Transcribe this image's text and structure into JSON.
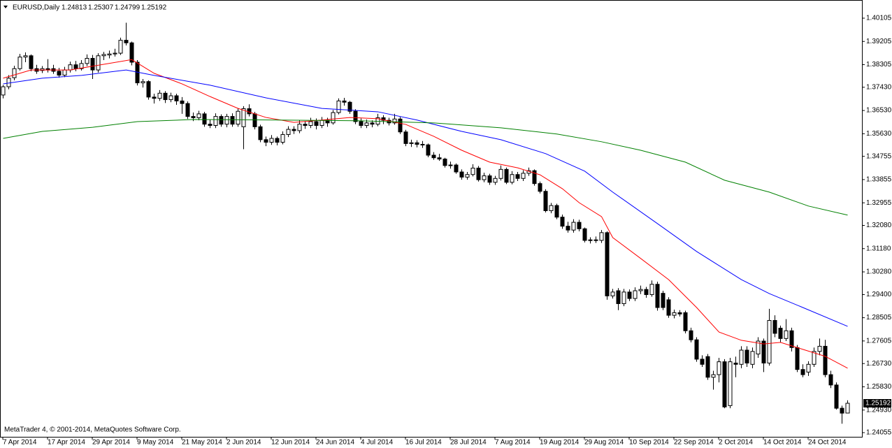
{
  "chart_data": {
    "type": "candlestick",
    "title": "EURUSD,Daily",
    "footer": "MetaTrader 4, © 2001-2014, MetaQuotes Software Corp.",
    "up_color": "#ffffff",
    "down_color": "#000000",
    "outline_color": "#000000",
    "ylim": [
      1.23893,
      1.40809
    ],
    "yticks": [
      1.40105,
      1.39205,
      1.38305,
      {
        "value": 1.3743,
        "label": "1.37430"
      },
      {
        "value": 1.3653,
        "label": "1.36530"
      },
      {
        "value": 1.3563,
        "label": "1.35630"
      },
      1.34755,
      1.33855,
      1.32955,
      {
        "value": 1.3208,
        "label": "1.32080"
      },
      {
        "value": 1.3118,
        "label": "1.31180"
      },
      {
        "value": 1.3028,
        "label": "1.30280"
      },
      {
        "value": 1.294,
        "label": "1.29400"
      },
      1.28505,
      1.27605,
      {
        "value": 1.2673,
        "label": "1.26730"
      },
      {
        "value": 1.2583,
        "label": "1.25830"
      },
      {
        "value": 1.2493,
        "label": "1.24930"
      },
      1.24055
    ],
    "xticks": [
      {
        "value": 0,
        "label": "7 Apr 2014"
      },
      {
        "value": 8,
        "label": "17 Apr 2014"
      },
      {
        "value": 16,
        "label": "29 Apr 2014"
      },
      {
        "value": 24,
        "label": "9 May 2014"
      },
      {
        "value": 32,
        "label": "21 May 2014"
      },
      {
        "value": 40,
        "label": "2 Jun 2014"
      },
      {
        "value": 48,
        "label": "12 Jun 2014"
      },
      {
        "value": 56,
        "label": "24 Jun 2014"
      },
      {
        "value": 64,
        "label": "4 Jul 2014"
      },
      {
        "value": 72,
        "label": "16 Jul 2014"
      },
      {
        "value": 80,
        "label": "28 Jul 2014"
      },
      {
        "value": 88,
        "label": "7 Aug 2014"
      },
      {
        "value": 96,
        "label": "19 Aug 2014"
      },
      {
        "value": 104,
        "label": "29 Aug 2014"
      },
      {
        "value": 112,
        "label": "10 Sep 2014"
      },
      {
        "value": 120,
        "label": "22 Sep 2014"
      },
      {
        "value": 128,
        "label": "2 Oct 2014"
      },
      {
        "value": 136,
        "label": "14 Oct 2014"
      },
      {
        "value": 144,
        "label": "24 Oct 2014"
      }
    ],
    "ohlc": [
      [
        1.3713,
        1.3752,
        1.37,
        1.3745
      ],
      [
        1.3745,
        1.379,
        1.3735,
        1.3778
      ],
      [
        1.378,
        1.3826,
        1.377,
        1.3815
      ],
      [
        1.3815,
        1.3872,
        1.3808,
        1.386
      ],
      [
        1.386,
        1.3878,
        1.384,
        1.3865
      ],
      [
        1.3865,
        1.387,
        1.3805,
        1.3815
      ],
      [
        1.3815,
        1.383,
        1.3795,
        1.3805
      ],
      [
        1.3808,
        1.3825,
        1.3798,
        1.3815
      ],
      [
        1.3815,
        1.3852,
        1.38,
        1.381
      ],
      [
        1.3815,
        1.383,
        1.3795,
        1.3805
      ],
      [
        1.3805,
        1.3818,
        1.378,
        1.379
      ],
      [
        1.379,
        1.3822,
        1.3782,
        1.381
      ],
      [
        1.381,
        1.3842,
        1.38,
        1.383
      ],
      [
        1.383,
        1.3845,
        1.3805,
        1.3815
      ],
      [
        1.3815,
        1.3848,
        1.3808,
        1.3835
      ],
      [
        1.3835,
        1.387,
        1.3825,
        1.3855
      ],
      [
        1.3855,
        1.3868,
        1.3775,
        1.381
      ],
      [
        1.381,
        1.3875,
        1.38,
        1.3865
      ],
      [
        1.3865,
        1.388,
        1.3848,
        1.387
      ],
      [
        1.3868,
        1.3885,
        1.3855,
        1.3872
      ],
      [
        1.3872,
        1.3892,
        1.3862,
        1.3875
      ],
      [
        1.3875,
        1.3935,
        1.3868,
        1.3925
      ],
      [
        1.3925,
        1.3993,
        1.3905,
        1.3915
      ],
      [
        1.3915,
        1.392,
        1.3828,
        1.384
      ],
      [
        1.384,
        1.3848,
        1.375,
        1.376
      ],
      [
        1.376,
        1.3775,
        1.3742,
        1.3765
      ],
      [
        1.3765,
        1.377,
        1.3695,
        1.3705
      ],
      [
        1.3705,
        1.3718,
        1.368,
        1.37
      ],
      [
        1.37,
        1.3732,
        1.369,
        1.372
      ],
      [
        1.372,
        1.3728,
        1.3682,
        1.3695
      ],
      [
        1.3695,
        1.3722,
        1.3685,
        1.371
      ],
      [
        1.371,
        1.3718,
        1.3675,
        1.369
      ],
      [
        1.369,
        1.3705,
        1.364,
        1.368
      ],
      [
        1.368,
        1.3688,
        1.362,
        1.363
      ],
      [
        1.363,
        1.3645,
        1.3612,
        1.3625
      ],
      [
        1.3625,
        1.3652,
        1.3615,
        1.364
      ],
      [
        1.364,
        1.3648,
        1.359,
        1.36
      ],
      [
        1.36,
        1.3618,
        1.3585,
        1.3595
      ],
      [
        1.3595,
        1.3642,
        1.3585,
        1.363
      ],
      [
        1.363,
        1.3638,
        1.359,
        1.36
      ],
      [
        1.36,
        1.364,
        1.3588,
        1.363
      ],
      [
        1.363,
        1.3642,
        1.359,
        1.36
      ],
      [
        1.36,
        1.366,
        1.359,
        1.365
      ],
      [
        1.359,
        1.367,
        1.3503,
        1.366
      ],
      [
        1.366,
        1.3677,
        1.363,
        1.364
      ],
      [
        1.364,
        1.3648,
        1.358,
        1.359
      ],
      [
        1.359,
        1.3598,
        1.353,
        1.354
      ],
      [
        1.354,
        1.3552,
        1.3515,
        1.353
      ],
      [
        1.353,
        1.3558,
        1.352,
        1.3545
      ],
      [
        1.3545,
        1.3552,
        1.3518,
        1.353
      ],
      [
        1.353,
        1.3572,
        1.3522,
        1.356
      ],
      [
        1.356,
        1.3592,
        1.355,
        1.358
      ],
      [
        1.358,
        1.3592,
        1.3562,
        1.3575
      ],
      [
        1.3575,
        1.3615,
        1.3565,
        1.36
      ],
      [
        1.36,
        1.3612,
        1.3582,
        1.3595
      ],
      [
        1.3595,
        1.3625,
        1.3585,
        1.361
      ],
      [
        1.361,
        1.3622,
        1.358,
        1.3595
      ],
      [
        1.3595,
        1.3628,
        1.3585,
        1.3615
      ],
      [
        1.3615,
        1.3625,
        1.359,
        1.3605
      ],
      [
        1.3605,
        1.3655,
        1.3598,
        1.3645
      ],
      [
        1.3645,
        1.37,
        1.3638,
        1.369
      ],
      [
        1.369,
        1.3702,
        1.3672,
        1.3685
      ],
      [
        1.3685,
        1.369,
        1.364,
        1.365
      ],
      [
        1.365,
        1.3658,
        1.36,
        1.361
      ],
      [
        1.361,
        1.3622,
        1.3585,
        1.3595
      ],
      [
        1.3595,
        1.3618,
        1.3585,
        1.3605
      ],
      [
        1.3605,
        1.3615,
        1.3588,
        1.36
      ],
      [
        1.36,
        1.364,
        1.3592,
        1.3625
      ],
      [
        1.3625,
        1.3635,
        1.36,
        1.3615
      ],
      [
        1.3615,
        1.3625,
        1.3595,
        1.3605
      ],
      [
        1.3605,
        1.364,
        1.3598,
        1.362
      ],
      [
        1.362,
        1.3628,
        1.3562,
        1.357
      ],
      [
        1.357,
        1.3578,
        1.3515,
        1.3525
      ],
      [
        1.3525,
        1.354,
        1.3512,
        1.3528
      ],
      [
        1.3528,
        1.3538,
        1.351,
        1.3522
      ],
      [
        1.3522,
        1.3535,
        1.3508,
        1.352
      ],
      [
        1.352,
        1.3525,
        1.3472,
        1.348
      ],
      [
        1.348,
        1.3492,
        1.3462,
        1.347
      ],
      [
        1.347,
        1.3485,
        1.3458,
        1.3465
      ],
      [
        1.3465,
        1.347,
        1.3432,
        1.344
      ],
      [
        1.344,
        1.3455,
        1.3428,
        1.3442
      ],
      [
        1.3442,
        1.3448,
        1.3408,
        1.3415
      ],
      [
        1.3415,
        1.3425,
        1.3385,
        1.3395
      ],
      [
        1.3395,
        1.3415,
        1.3385,
        1.3405
      ],
      [
        1.3405,
        1.3445,
        1.3398,
        1.343
      ],
      [
        1.343,
        1.3438,
        1.3378,
        1.3385
      ],
      [
        1.3385,
        1.3412,
        1.3375,
        1.34
      ],
      [
        1.34,
        1.3408,
        1.3365,
        1.3375
      ],
      [
        1.3375,
        1.34,
        1.3365,
        1.339
      ],
      [
        1.339,
        1.344,
        1.3382,
        1.3425
      ],
      [
        1.3425,
        1.3432,
        1.3368,
        1.3375
      ],
      [
        1.3375,
        1.3418,
        1.3367,
        1.3405
      ],
      [
        1.3405,
        1.3415,
        1.338,
        1.339
      ],
      [
        1.339,
        1.3422,
        1.338,
        1.341
      ],
      [
        1.341,
        1.3432,
        1.34,
        1.342
      ],
      [
        1.342,
        1.3425,
        1.3362,
        1.337
      ],
      [
        1.337,
        1.3378,
        1.3332,
        1.334
      ],
      [
        1.334,
        1.3348,
        1.3258,
        1.3265
      ],
      [
        1.3265,
        1.3295,
        1.3255,
        1.3285
      ],
      [
        1.3285,
        1.3292,
        1.3232,
        1.324
      ],
      [
        1.324,
        1.325,
        1.3195,
        1.3205
      ],
      [
        1.3205,
        1.3222,
        1.318,
        1.319
      ],
      [
        1.319,
        1.3232,
        1.318,
        1.322
      ],
      [
        1.322,
        1.323,
        1.3185,
        1.3195
      ],
      [
        1.3195,
        1.32,
        1.3142,
        1.315
      ],
      [
        1.315,
        1.3162,
        1.3138,
        1.3152
      ],
      [
        1.3152,
        1.3165,
        1.314,
        1.315
      ],
      [
        1.315,
        1.319,
        1.314,
        1.318
      ],
      [
        1.318,
        1.3185,
        1.292,
        1.2935
      ],
      [
        1.2935,
        1.2962,
        1.2925,
        1.295
      ],
      [
        1.2955,
        1.2965,
        1.288,
        1.2905
      ],
      [
        1.2905,
        1.2962,
        1.2895,
        1.295
      ],
      [
        1.295,
        1.296,
        1.2915,
        1.2925
      ],
      [
        1.2925,
        1.2968,
        1.2915,
        1.2955
      ],
      [
        1.2955,
        1.2975,
        1.2942,
        1.296
      ],
      [
        1.296,
        1.297,
        1.2928,
        1.294
      ],
      [
        1.294,
        1.2995,
        1.2932,
        1.298
      ],
      [
        1.298,
        1.299,
        1.2878,
        1.289
      ],
      [
        1.2945,
        1.2955,
        1.288,
        1.289
      ],
      [
        1.292,
        1.293,
        1.285,
        1.286
      ],
      [
        1.286,
        1.2882,
        1.2848,
        1.287
      ],
      [
        1.287,
        1.288,
        1.2855,
        1.2865
      ],
      [
        1.287,
        1.2878,
        1.279,
        1.28
      ],
      [
        1.28,
        1.2812,
        1.2755,
        1.2765
      ],
      [
        1.2765,
        1.2775,
        1.268,
        1.269
      ],
      [
        1.269,
        1.2705,
        1.266,
        1.267
      ],
      [
        1.27,
        1.271,
        1.261,
        1.262
      ],
      [
        1.262,
        1.2645,
        1.2572,
        1.263
      ],
      [
        1.263,
        1.2695,
        1.26,
        1.268
      ],
      [
        1.268,
        1.269,
        1.25,
        1.2505
      ],
      [
        1.251,
        1.2695,
        1.25,
        1.268
      ],
      [
        1.2675,
        1.27,
        1.262,
        1.267
      ],
      [
        1.267,
        1.274,
        1.2655,
        1.2725
      ],
      [
        1.2725,
        1.274,
        1.266,
        1.2675
      ],
      [
        1.267,
        1.2735,
        1.2655,
        1.272
      ],
      [
        1.271,
        1.2775,
        1.2695,
        1.276
      ],
      [
        1.276,
        1.277,
        1.264,
        1.2675
      ],
      [
        1.2675,
        1.2885,
        1.2665,
        1.284
      ],
      [
        1.284,
        1.286,
        1.2775,
        1.279
      ],
      [
        1.281,
        1.282,
        1.2755,
        1.277
      ],
      [
        1.277,
        1.2845,
        1.276,
        1.28
      ],
      [
        1.28,
        1.2812,
        1.272,
        1.2735
      ],
      [
        1.2735,
        1.2745,
        1.264,
        1.265
      ],
      [
        1.265,
        1.267,
        1.262,
        1.263
      ],
      [
        1.264,
        1.2682,
        1.2625,
        1.267
      ],
      [
        1.267,
        1.2735,
        1.266,
        1.272
      ],
      [
        1.272,
        1.277,
        1.2705,
        1.274
      ],
      [
        1.274,
        1.2765,
        1.262,
        1.263
      ],
      [
        1.263,
        1.2645,
        1.2578,
        1.259
      ],
      [
        1.259,
        1.26,
        1.2495,
        1.25
      ],
      [
        1.25,
        1.251,
        1.244,
        1.2481
      ],
      [
        1.24813,
        1.25307,
        1.24799,
        1.25192
      ]
    ],
    "lines": [
      {
        "color": "#ff0000",
        "x": [
          0,
          5,
          12,
          18,
          23,
          27,
          32,
          37,
          42,
          47,
          52,
          57,
          62,
          67,
          72,
          77,
          82,
          87,
          92,
          96,
          100,
          103,
          107,
          109,
          114,
          119,
          124,
          128,
          132,
          136,
          139,
          143,
          147,
          151
        ],
        "values": [
          1.3778,
          1.381,
          1.381,
          1.3832,
          1.385,
          1.3797,
          1.3756,
          1.3707,
          1.3661,
          1.3626,
          1.3607,
          1.3616,
          1.3626,
          1.3621,
          1.3599,
          1.3553,
          1.3499,
          1.3453,
          1.3431,
          1.3404,
          1.335,
          1.3296,
          1.3242,
          1.3161,
          1.308,
          1.2998,
          1.289,
          1.2795,
          1.2763,
          1.2749,
          1.2755,
          1.2728,
          1.2701,
          1.2655
        ]
      },
      {
        "color": "#0000ff",
        "x": [
          0,
          7,
          14,
          22,
          27,
          37,
          47,
          57,
          67,
          74,
          82,
          89,
          97,
          104,
          109,
          117,
          124,
          132,
          137,
          143,
          151
        ],
        "values": [
          1.3756,
          1.3778,
          1.3789,
          1.381,
          1.3789,
          1.3751,
          1.3702,
          1.3661,
          1.3648,
          1.3616,
          1.3572,
          1.354,
          1.3486,
          1.3418,
          1.3337,
          1.3215,
          1.3107,
          1.2998,
          1.2944,
          1.289,
          1.2817
        ]
      },
      {
        "color": "#008000",
        "x": [
          0,
          7,
          16,
          24,
          34,
          49,
          64,
          77,
          89,
          99,
          107,
          114,
          122,
          129,
          137,
          144,
          151
        ],
        "values": [
          1.3545,
          1.3572,
          1.3588,
          1.361,
          1.3618,
          1.3616,
          1.3613,
          1.3605,
          1.3586,
          1.3562,
          1.3532,
          1.3499,
          1.3453,
          1.3383,
          1.3337,
          1.3283,
          1.3248
        ]
      }
    ]
  }
}
